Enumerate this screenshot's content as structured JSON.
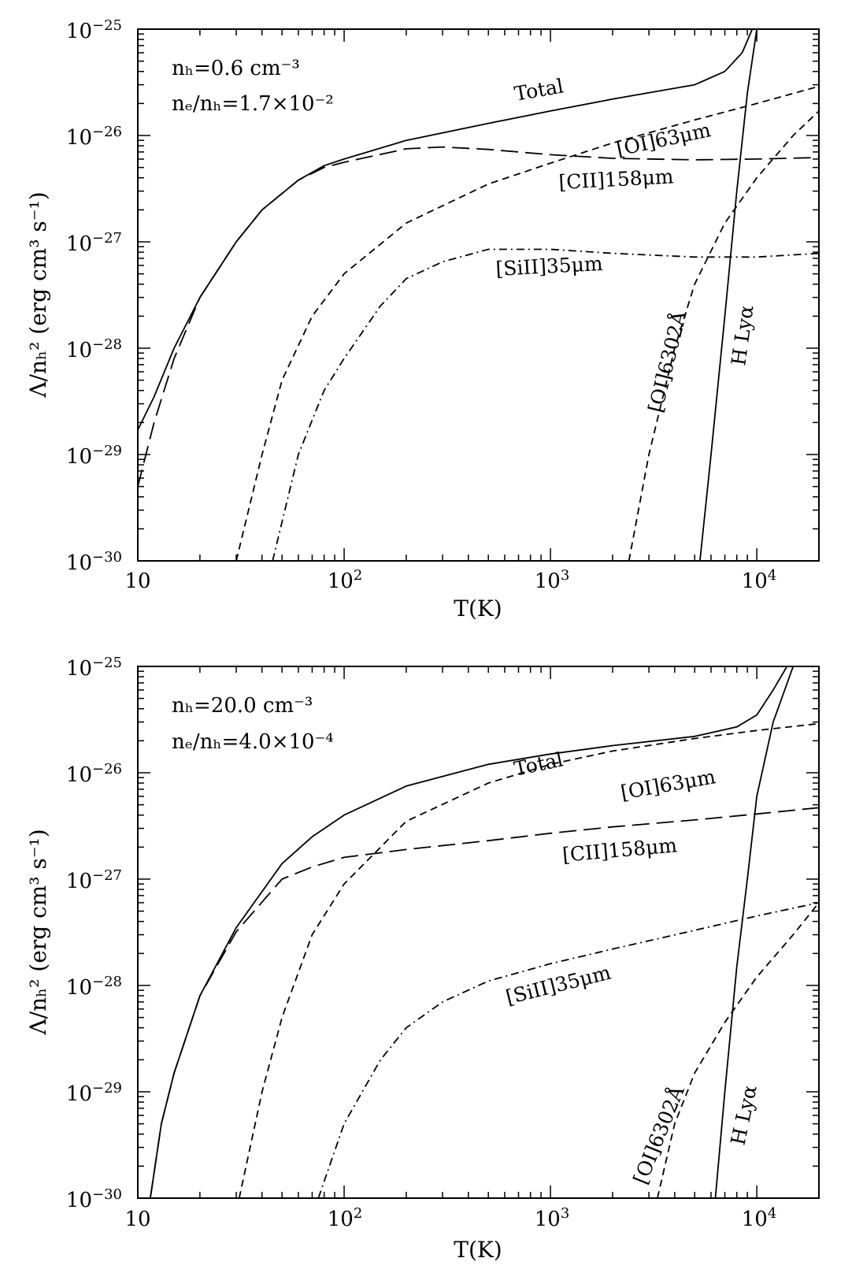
{
  "chart_data": [
    {
      "type": "line",
      "log_x": true,
      "log_y": true,
      "xlim": [
        10,
        20000
      ],
      "ylim": [
        1e-30,
        1e-25
      ],
      "xlabel": "T(K)",
      "ylabel": "Λ/n_H^2 (erg cm^3 s^-1)",
      "xticks": [
        10,
        100,
        1000,
        10000
      ],
      "xticklabels": [
        "10",
        "10^2",
        "10^3",
        "10^4"
      ],
      "yticks": [
        1e-30,
        1e-29,
        1e-28,
        1e-27,
        1e-26,
        1e-25
      ],
      "yticklabels": [
        "10^-30",
        "10^-29",
        "10^-28",
        "10^-27",
        "10^-26",
        "10^-25"
      ],
      "annotations": [
        "n_H=0.6 cm^-3",
        "n_e/n_H=1.7×10^-2"
      ],
      "series": [
        {
          "name": "Total",
          "style": "solid",
          "points": [
            [
              10,
              1.7e-29
            ],
            [
              12,
              3.5e-29
            ],
            [
              15,
              1e-28
            ],
            [
              20,
              3e-28
            ],
            [
              30,
              1e-27
            ],
            [
              40,
              2e-27
            ],
            [
              60,
              3.8e-27
            ],
            [
              80,
              5.2e-27
            ],
            [
              100,
              6e-27
            ],
            [
              200,
              9e-27
            ],
            [
              500,
              1.3e-26
            ],
            [
              1000,
              1.7e-26
            ],
            [
              2000,
              2.2e-26
            ],
            [
              5000,
              3e-26
            ],
            [
              7000,
              4e-26
            ],
            [
              8500,
              6e-26
            ],
            [
              9500,
              1e-25
            ]
          ]
        },
        {
          "name": "[CII]158μm",
          "style": "long-dash",
          "points": [
            [
              10,
              5e-30
            ],
            [
              12,
              2e-29
            ],
            [
              15,
              8e-29
            ],
            [
              20,
              3e-28
            ],
            [
              30,
              1e-27
            ],
            [
              40,
              2e-27
            ],
            [
              60,
              3.8e-27
            ],
            [
              80,
              5e-27
            ],
            [
              100,
              5.6e-27
            ],
            [
              200,
              7.5e-27
            ],
            [
              300,
              7.8e-27
            ],
            [
              500,
              7.4e-27
            ],
            [
              1000,
              6.6e-27
            ],
            [
              2000,
              6.1e-27
            ],
            [
              5000,
              5.9e-27
            ],
            [
              10000,
              6e-27
            ],
            [
              20000,
              6.2e-27
            ]
          ]
        },
        {
          "name": "[OI]63μm",
          "style": "short-dash",
          "points": [
            [
              30,
              1e-30
            ],
            [
              40,
              1e-29
            ],
            [
              50,
              5e-29
            ],
            [
              70,
              2e-28
            ],
            [
              100,
              5e-28
            ],
            [
              200,
              1.5e-27
            ],
            [
              500,
              3.5e-27
            ],
            [
              1000,
              5.5e-27
            ],
            [
              2000,
              8.5e-27
            ],
            [
              5000,
              1.4e-26
            ],
            [
              10000,
              2e-26
            ],
            [
              20000,
              2.9e-26
            ]
          ]
        },
        {
          "name": "[SiII]35μm",
          "style": "dot-dash",
          "points": [
            [
              45,
              1e-30
            ],
            [
              60,
              1e-29
            ],
            [
              80,
              4e-29
            ],
            [
              100,
              8e-29
            ],
            [
              150,
              2.5e-28
            ],
            [
              200,
              4.5e-28
            ],
            [
              300,
              6.5e-28
            ],
            [
              500,
              8.5e-28
            ],
            [
              1000,
              8.5e-28
            ],
            [
              2000,
              7.8e-28
            ],
            [
              5000,
              7.2e-28
            ],
            [
              10000,
              7.2e-28
            ],
            [
              20000,
              7.8e-28
            ]
          ]
        },
        {
          "name": "[OI]6302Å",
          "style": "short-dash",
          "points": [
            [
              2400,
              1e-30
            ],
            [
              3000,
              1e-29
            ],
            [
              4000,
              1e-28
            ],
            [
              5000,
              4e-28
            ],
            [
              7000,
              1.5e-27
            ],
            [
              10000,
              4e-27
            ],
            [
              15000,
              1e-26
            ],
            [
              20000,
              1.7e-26
            ]
          ]
        },
        {
          "name": "H Lyα",
          "style": "solid",
          "points": [
            [
              5300,
              1e-30
            ],
            [
              6000,
              1e-29
            ],
            [
              7000,
              2e-28
            ],
            [
              8000,
              3e-27
            ],
            [
              9000,
              2.5e-26
            ],
            [
              10000,
              1e-25
            ]
          ]
        }
      ],
      "curve_labels": [
        "Total",
        "[OI]63μm",
        "[CII]158μm",
        "[SiII]35μm",
        "[OI]6302Å",
        "H Lyα"
      ]
    },
    {
      "type": "line",
      "log_x": true,
      "log_y": true,
      "xlim": [
        10,
        20000
      ],
      "ylim": [
        1e-30,
        1e-25
      ],
      "xlabel": "T(K)",
      "ylabel": "Λ/n_H^2 (erg cm^3 s^-1)",
      "xticks": [
        10,
        100,
        1000,
        10000
      ],
      "xticklabels": [
        "10",
        "10^2",
        "10^3",
        "10^4"
      ],
      "yticks": [
        1e-30,
        1e-29,
        1e-28,
        1e-27,
        1e-26,
        1e-25
      ],
      "yticklabels": [
        "10^-30",
        "10^-29",
        "10^-28",
        "10^-27",
        "10^-26",
        "10^-25"
      ],
      "annotations": [
        "n_H=20.0 cm^-3",
        "n_e/n_H=4.0×10^-4"
      ],
      "series": [
        {
          "name": "Total",
          "style": "solid",
          "points": [
            [
              11.5,
              1e-30
            ],
            [
              13,
              5e-30
            ],
            [
              15,
              1.5e-29
            ],
            [
              20,
              8e-29
            ],
            [
              30,
              3.5e-28
            ],
            [
              50,
              1.4e-27
            ],
            [
              70,
              2.5e-27
            ],
            [
              100,
              4e-27
            ],
            [
              200,
              7.5e-27
            ],
            [
              500,
              1.2e-26
            ],
            [
              1000,
              1.5e-26
            ],
            [
              2000,
              1.8e-26
            ],
            [
              5000,
              2.2e-26
            ],
            [
              8000,
              2.7e-26
            ],
            [
              10000,
              3.5e-26
            ],
            [
              12000,
              6e-26
            ],
            [
              14000,
              1e-25
            ]
          ]
        },
        {
          "name": "[CII]158μm",
          "style": "long-dash",
          "points": [
            [
              11.5,
              1e-30
            ],
            [
              13,
              5e-30
            ],
            [
              15,
              1.5e-29
            ],
            [
              20,
              8e-29
            ],
            [
              30,
              3.2e-28
            ],
            [
              50,
              1e-27
            ],
            [
              70,
              1.3e-27
            ],
            [
              100,
              1.6e-27
            ],
            [
              200,
              1.9e-27
            ],
            [
              500,
              2.3e-27
            ],
            [
              1000,
              2.7e-27
            ],
            [
              2000,
              3.1e-27
            ],
            [
              5000,
              3.6e-27
            ],
            [
              10000,
              4.1e-27
            ],
            [
              20000,
              4.7e-27
            ]
          ]
        },
        {
          "name": "[OI]63μm",
          "style": "short-dash",
          "points": [
            [
              31,
              1e-30
            ],
            [
              40,
              1e-29
            ],
            [
              50,
              5e-29
            ],
            [
              70,
              3e-28
            ],
            [
              100,
              9e-28
            ],
            [
              200,
              3.5e-27
            ],
            [
              500,
              8e-27
            ],
            [
              1000,
              1.2e-26
            ],
            [
              2000,
              1.6e-26
            ],
            [
              5000,
              2.1e-26
            ],
            [
              10000,
              2.5e-26
            ],
            [
              20000,
              2.9e-26
            ]
          ]
        },
        {
          "name": "[SiII]35μm",
          "style": "dot-dash",
          "points": [
            [
              75,
              1e-30
            ],
            [
              100,
              5e-30
            ],
            [
              150,
              2e-29
            ],
            [
              200,
              4e-29
            ],
            [
              300,
              7e-29
            ],
            [
              500,
              1.1e-28
            ],
            [
              1000,
              1.6e-28
            ],
            [
              2000,
              2.2e-28
            ],
            [
              5000,
              3.3e-28
            ],
            [
              10000,
              4.5e-28
            ],
            [
              20000,
              6e-28
            ]
          ]
        },
        {
          "name": "[OI]6302Å",
          "style": "short-dash",
          "points": [
            [
              3300,
              1e-30
            ],
            [
              4000,
              5e-30
            ],
            [
              5000,
              1.5e-29
            ],
            [
              7000,
              4.5e-29
            ],
            [
              10000,
              1.2e-28
            ],
            [
              15000,
              3e-28
            ],
            [
              20000,
              6e-28
            ]
          ]
        },
        {
          "name": "H Lyα",
          "style": "solid",
          "points": [
            [
              6300,
              1e-30
            ],
            [
              7000,
              1e-29
            ],
            [
              8000,
              1.5e-28
            ],
            [
              9000,
              1e-27
            ],
            [
              10000,
              6e-27
            ],
            [
              12000,
              3e-26
            ],
            [
              15000,
              1e-25
            ]
          ]
        }
      ],
      "curve_labels": [
        "Total",
        "[OI]63μm",
        "[CII]158μm",
        "[SiII]35μm",
        "[OI]6302Å",
        "H Lyα"
      ]
    }
  ]
}
